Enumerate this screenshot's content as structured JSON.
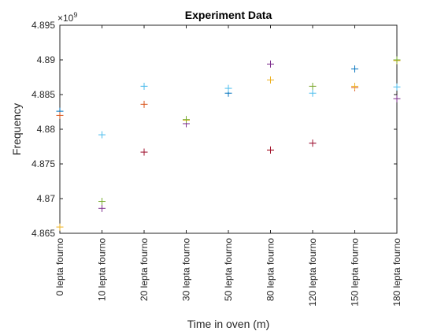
{
  "chart_data": {
    "type": "scatter",
    "title": "Experiment Data",
    "xlabel": "Time in oven (m)",
    "ylabel": "Frequency",
    "y_multiplier_text": "×10",
    "y_multiplier_exp": "9",
    "categories": [
      "0 lepta fourno",
      "10 lepta fourno",
      "20 lepta fourno",
      "30 lepta fourno",
      "50 lepta fourno",
      "80 lepta fourno",
      "120 lepta fourno",
      "150 lepta fourno",
      "180 lepta fourno"
    ],
    "ylim": [
      4.865,
      4.895
    ],
    "y_ticks": [
      4.865,
      4.87,
      4.875,
      4.88,
      4.885,
      4.89,
      4.895
    ],
    "y_tick_labels": [
      "4.865",
      "4.87",
      "4.875",
      "4.88",
      "4.885",
      "4.89",
      "4.895"
    ],
    "grid": false,
    "marker": "plus",
    "series": [
      {
        "color": "#0072BD",
        "values": [
          4.8826,
          null,
          4.8862,
          null,
          4.8852,
          null,
          null,
          4.8887,
          null
        ]
      },
      {
        "color": "#D95319",
        "values": [
          4.882,
          null,
          4.8836,
          null,
          null,
          4.877,
          4.8862,
          4.886,
          null
        ]
      },
      {
        "color": "#EDB120",
        "values": [
          4.8659,
          4.8696,
          null,
          4.8813,
          null,
          4.8871,
          null,
          4.8862,
          4.8899
        ]
      },
      {
        "color": "#7E2F8E",
        "values": [
          null,
          4.8686,
          4.8767,
          4.8808,
          null,
          4.8894,
          4.878,
          null,
          4.8844
        ]
      },
      {
        "color": "#77AC30",
        "values": [
          null,
          4.8696,
          null,
          4.8814,
          null,
          null,
          4.8862,
          null,
          4.89
        ]
      },
      {
        "color": "#4DBEEE",
        "values": [
          null,
          4.8792,
          4.8862,
          null,
          4.8859,
          null,
          4.8852,
          null,
          4.8861
        ]
      },
      {
        "color": "#A2142F",
        "values": [
          null,
          null,
          4.8767,
          null,
          null,
          4.877,
          4.878,
          null,
          null
        ]
      }
    ]
  }
}
